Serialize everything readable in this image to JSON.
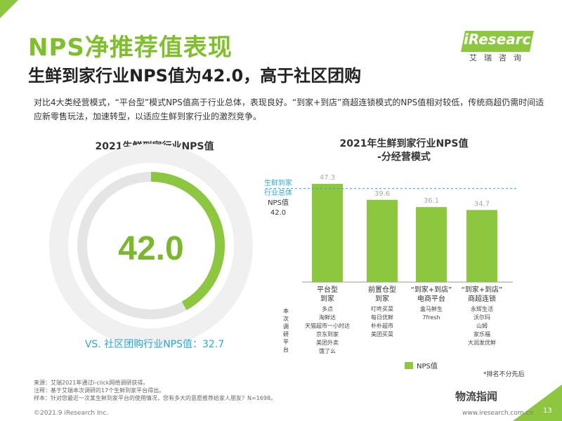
{
  "header": {
    "title": "NPS净推荐值表现",
    "subtitle": "生鲜到家行业NPS值为42.0，高于社区团购",
    "description": "对比4大类经营模式，“平台型”模式NPS值高于行业总体，表现良好。“到家+到店”商超连锁模式的NPS值相对较低，传统商超仍需时间适应新零售玩法，加速转型，以适应生鲜到家行业的激烈竞争。"
  },
  "logo": {
    "main": "iResearch",
    "sub": "艾瑞咨询"
  },
  "gauge": {
    "title": "2021生鲜到家行业NPS值",
    "value_label": "42.0",
    "value": 42.0,
    "comparison": "VS. 社区团购行业NPS值：32.7",
    "colors": {
      "ring": "#8dc63f",
      "track": "#e5e5e5",
      "text": "#7ab82e"
    }
  },
  "chart_data": {
    "type": "bar",
    "title": "2021年生鲜到家行业NPS值\n-分经营模式",
    "categories": [
      "平台型\n到家",
      "前置仓型\n到家",
      "“到家+到店”\n电商平台",
      "“到家+到店”\n商超连锁"
    ],
    "series": [
      {
        "name": "NPS值",
        "values": [
          47.3,
          39.6,
          36.1,
          34.7
        ]
      }
    ],
    "value_labels": [
      "47.3",
      "39.6",
      "36.1",
      "34.7"
    ],
    "reference_line": {
      "value": 42.0,
      "label_lines": [
        "生鲜到家",
        "行业总体",
        "NPS值",
        "42.0"
      ]
    },
    "ylim": [
      0,
      50
    ],
    "legend": "bottom",
    "y_side_label": "本次调研平台",
    "platforms": [
      [
        "多点",
        "淘鲜达",
        "天猫超市一小时达",
        "京东到家",
        "美团外卖",
        "饿了么"
      ],
      [
        "叮咚买菜",
        "每日优鲜",
        "朴朴超市",
        "美团买菜"
      ],
      [
        "盒马鲜生",
        "7fresh"
      ],
      [
        "永辉生活",
        "沃尔玛",
        "山姆",
        "家乐福",
        "大润发优鲜"
      ]
    ],
    "colors": {
      "bar": "#8dc63f",
      "label": "#aaaaaa",
      "ref": "#2aa8d8"
    }
  },
  "footer": {
    "notes": [
      "来源：艾瑞2021年通过i-click网络调研获得。",
      "注释：基于艾瑞本次调研的17个生鲜到家平台得出。",
      "样本：针对您最近一次某生鲜到家平台的使用情况，您有多大的意愿推荐给家人朋友？N=1698。"
    ],
    "rank_note": "*排名不分先后",
    "copyright": "©2021.9 iResearch Inc.",
    "url": "www.iresearch.com.cn",
    "wechat": "物流指闻",
    "page_number": "13"
  }
}
